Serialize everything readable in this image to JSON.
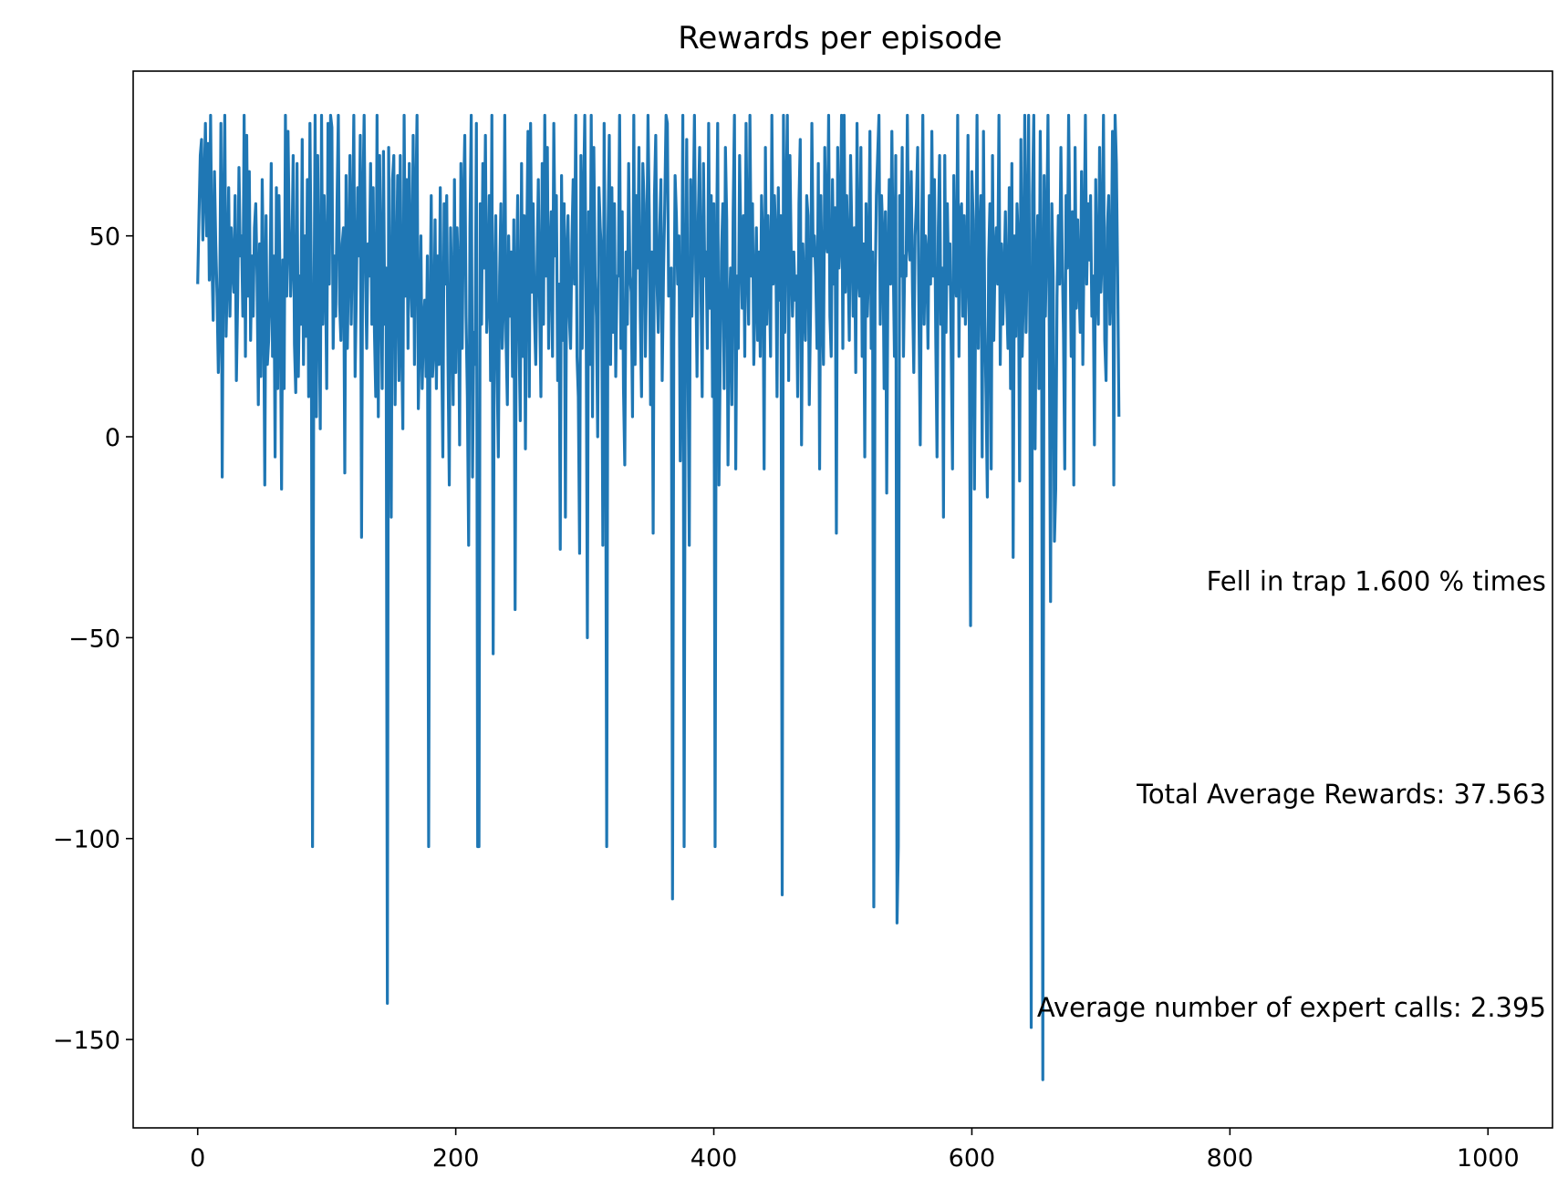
{
  "chart_data": {
    "type": "line",
    "title": "Rewards per episode",
    "xlabel": "",
    "ylabel": "",
    "xlim": [
      -50,
      1050
    ],
    "ylim": [
      -172,
      91
    ],
    "x_ticks": [
      0,
      200,
      400,
      600,
      800,
      1000
    ],
    "y_ticks": [
      50,
      0,
      -50,
      -100,
      -150
    ],
    "x_tick_labels": [
      "0",
      "200",
      "400",
      "600",
      "800",
      "1000"
    ],
    "y_tick_labels": [
      "50",
      "0",
      "−50",
      "−100",
      "−150"
    ],
    "grid": false,
    "legend": "none",
    "series_color": "#1f77b4",
    "annotations": [
      {
        "text": "Fell in trap 1.600 % times",
        "x": 1045,
        "y": -36
      },
      {
        "text": "Total Average Rewards: 37.563",
        "x": 1045,
        "y": -89
      },
      {
        "text": "Average number of expert calls: 2.395",
        "x": 1045,
        "y": -142
      }
    ],
    "series": [
      {
        "x_start": 0,
        "x_step": 1,
        "values": [
          38,
          55,
          70,
          74,
          49,
          62,
          78,
          50,
          73,
          39,
          80,
          45,
          29,
          66,
          48,
          35,
          16,
          30,
          78,
          -10,
          55,
          80,
          25,
          40,
          62,
          30,
          52,
          42,
          36,
          60,
          14,
          35,
          67,
          45,
          50,
          30,
          80,
          20,
          75,
          35,
          66,
          24,
          45,
          30,
          52,
          58,
          40,
          8,
          48,
          15,
          64,
          40,
          -12,
          55,
          18,
          24,
          35,
          68,
          20,
          45,
          -5,
          62,
          12,
          60,
          35,
          -13,
          44,
          12,
          80,
          35,
          76,
          50,
          35,
          45,
          70,
          23,
          11,
          68,
          15,
          40,
          28,
          74,
          18,
          50,
          25,
          64,
          10,
          78,
          40,
          -102,
          22,
          80,
          5,
          70,
          35,
          2,
          80,
          28,
          60,
          42,
          12,
          78,
          38,
          80,
          77,
          22,
          45,
          30,
          58,
          80,
          33,
          24,
          48,
          52,
          -9,
          65,
          22,
          44,
          70,
          28,
          50,
          80,
          15,
          37,
          62,
          45,
          75,
          -25,
          58,
          80,
          42,
          22,
          48,
          40,
          68,
          28,
          62,
          26,
          10,
          80,
          5,
          70,
          40,
          12,
          71,
          28,
          42,
          -141,
          72,
          33,
          -20,
          64,
          70,
          8,
          40,
          65,
          14,
          70,
          25,
          2,
          80,
          35,
          64,
          22,
          68,
          40,
          30,
          75,
          18,
          58,
          80,
          7,
          24,
          50,
          12,
          28,
          34,
          15,
          45,
          -102,
          28,
          60,
          15,
          22,
          54,
          12,
          45,
          18,
          62,
          25,
          -5,
          58,
          38,
          60,
          18,
          -12,
          52,
          35,
          8,
          64,
          16,
          52,
          40,
          -2,
          68,
          22,
          58,
          75,
          30,
          10,
          -27,
          52,
          80,
          -10,
          26,
          18,
          78,
          -102,
          -102,
          58,
          28,
          68,
          42,
          75,
          26,
          35,
          60,
          14,
          80,
          -54,
          36,
          55,
          18,
          -5,
          40,
          58,
          22,
          33,
          80,
          24,
          8,
          50,
          30,
          46,
          15,
          54,
          -43,
          38,
          60,
          26,
          4,
          68,
          20,
          55,
          -3,
          48,
          76,
          10,
          78,
          36,
          58,
          30,
          18,
          42,
          64,
          34,
          10,
          68,
          28,
          80,
          40,
          72,
          22,
          45,
          56,
          20,
          78,
          45,
          60,
          14,
          38,
          -28,
          65,
          24,
          58,
          -20,
          46,
          55,
          30,
          22,
          48,
          64,
          38,
          80,
          20,
          10,
          -29,
          70,
          22,
          58,
          80,
          36,
          -50,
          56,
          18,
          80,
          5,
          72,
          40,
          30,
          0,
          62,
          52,
          45,
          -27,
          78,
          30,
          -102,
          50,
          75,
          18,
          62,
          26,
          58,
          15,
          40,
          40,
          80,
          22,
          56,
          12,
          -7,
          46,
          28,
          68,
          40,
          36,
          5,
          80,
          18,
          60,
          42,
          72,
          30,
          10,
          68,
          58,
          20,
          44,
          80,
          55,
          8,
          46,
          -24,
          60,
          75,
          38,
          26,
          50,
          64,
          14,
          40,
          58,
          80,
          78,
          35,
          40,
          42,
          -115,
          24,
          65,
          55,
          38,
          50,
          -6,
          26,
          80,
          -102,
          38,
          74,
          18,
          -27,
          64,
          30,
          54,
          80,
          42,
          15,
          55,
          72,
          38,
          10,
          68,
          40,
          46,
          22,
          78,
          32,
          60,
          10,
          58,
          -102,
          42,
          78,
          -12,
          20,
          46,
          58,
          12,
          72,
          54,
          -7,
          30,
          42,
          8,
          56,
          80,
          -8,
          40,
          22,
          70,
          48,
          32,
          55,
          20,
          78,
          44,
          28,
          80,
          40,
          58,
          18,
          36,
          52,
          24,
          46,
          20,
          60,
          48,
          -8,
          72,
          28,
          55,
          40,
          20,
          80,
          38,
          60,
          50,
          10,
          62,
          34,
          55,
          -114,
          80,
          26,
          58,
          80,
          14,
          70,
          45,
          30,
          46,
          34,
          40,
          10,
          58,
          74,
          -2,
          48,
          35,
          24,
          60,
          55,
          8,
          32,
          78,
          45,
          50,
          40,
          22,
          68,
          -8,
          60,
          35,
          18,
          72,
          50,
          46,
          80,
          30,
          20,
          64,
          38,
          57,
          -24,
          72,
          42,
          50,
          80,
          22,
          80,
          36,
          60,
          45,
          24,
          70,
          50,
          30,
          52,
          16,
          78,
          40,
          35,
          72,
          20,
          48,
          -5,
          58,
          30,
          42,
          76,
          22,
          46,
          -117,
          36,
          60,
          70,
          80,
          28,
          60,
          50,
          12,
          56,
          -14,
          44,
          64,
          38,
          76,
          45,
          20,
          70,
          -121,
          -102,
          60,
          40,
          72,
          20,
          45,
          40,
          80,
          48,
          44,
          66,
          36,
          16,
          50,
          58,
          72,
          30,
          -2,
          46,
          80,
          28,
          50,
          45,
          22,
          60,
          38,
          76,
          40,
          64,
          25,
          -5,
          52,
          70,
          28,
          42,
          -20,
          70,
          26,
          58,
          38,
          48,
          22,
          -8,
          65,
          40,
          35,
          80,
          20,
          56,
          58,
          30,
          55,
          28,
          40,
          75,
          26,
          -47,
          66,
          54,
          -13,
          38,
          80,
          22,
          48,
          60,
          -5,
          76,
          30,
          10,
          -15,
          44,
          58,
          -8,
          70,
          24,
          45,
          52,
          38,
          80,
          18,
          48,
          28,
          40,
          56,
          34,
          22,
          62,
          12,
          68,
          -30,
          50,
          25,
          58,
          48,
          -11,
          74,
          20,
          36,
          80,
          26,
          48,
          80,
          22,
          -147,
          60,
          80,
          -3,
          38,
          55,
          12,
          76,
          40,
          -160,
          65,
          30,
          50,
          80,
          26,
          -41,
          58,
          40,
          -26,
          -13,
          35,
          55,
          38,
          72,
          46,
          26,
          -8,
          60,
          42,
          80,
          50,
          20,
          56,
          -12,
          72,
          32,
          54,
          38,
          26,
          66,
          18,
          50,
          80,
          38,
          58,
          44,
          60,
          30,
          40,
          -2,
          64,
          38,
          28,
          72,
          36,
          46,
          80,
          24,
          14,
          52,
          60,
          28,
          40,
          76,
          -12,
          80,
          68,
          40,
          5
        ]
      }
    ]
  }
}
